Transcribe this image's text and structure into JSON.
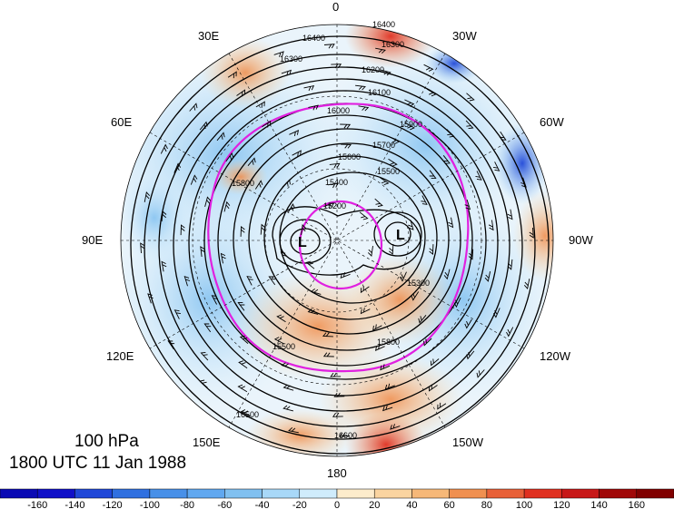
{
  "title": {
    "level": "100 hPa",
    "time": "1800 UTC 11 Jan 1988"
  },
  "longitude_labels": {
    "lon_0": "0",
    "lon_30w": "30W",
    "lon_60w": "60W",
    "lon_90w": "90W",
    "lon_120w": "120W",
    "lon_150w": "150W",
    "lon_180": "180",
    "lon_150e": "150E",
    "lon_120e": "120E",
    "lon_90e": "90E",
    "lon_60e": "60E",
    "lon_30e": "30E"
  },
  "contour_labels": [
    "16400",
    "16300",
    "16200",
    "16100",
    "16000",
    "15900",
    "15700",
    "15600",
    "15500",
    "15400",
    "15200",
    "15300",
    "15800",
    "16500",
    "16600"
  ],
  "low_markers": [
    "L",
    "L"
  ],
  "colorbar": {
    "ticks": [
      "-160",
      "-140",
      "-120",
      "-100",
      "-80",
      "-60",
      "-40",
      "-20",
      "0",
      "20",
      "40",
      "60",
      "80",
      "100",
      "120",
      "140",
      "160"
    ],
    "colors": [
      "#1010c8",
      "#2048d8",
      "#3070e0",
      "#4890e8",
      "#60a8f0",
      "#80c0f0",
      "#a8d8f8",
      "#d0ecfc",
      "#ffffff",
      "#fdeccc",
      "#fad4a0",
      "#f6b878",
      "#f09050",
      "#e86038",
      "#e03020",
      "#c81818",
      "#a00808"
    ]
  },
  "colors": {
    "contour": "#000000",
    "highlight_contour": "#e020e0",
    "map_background": "#ffffff"
  }
}
